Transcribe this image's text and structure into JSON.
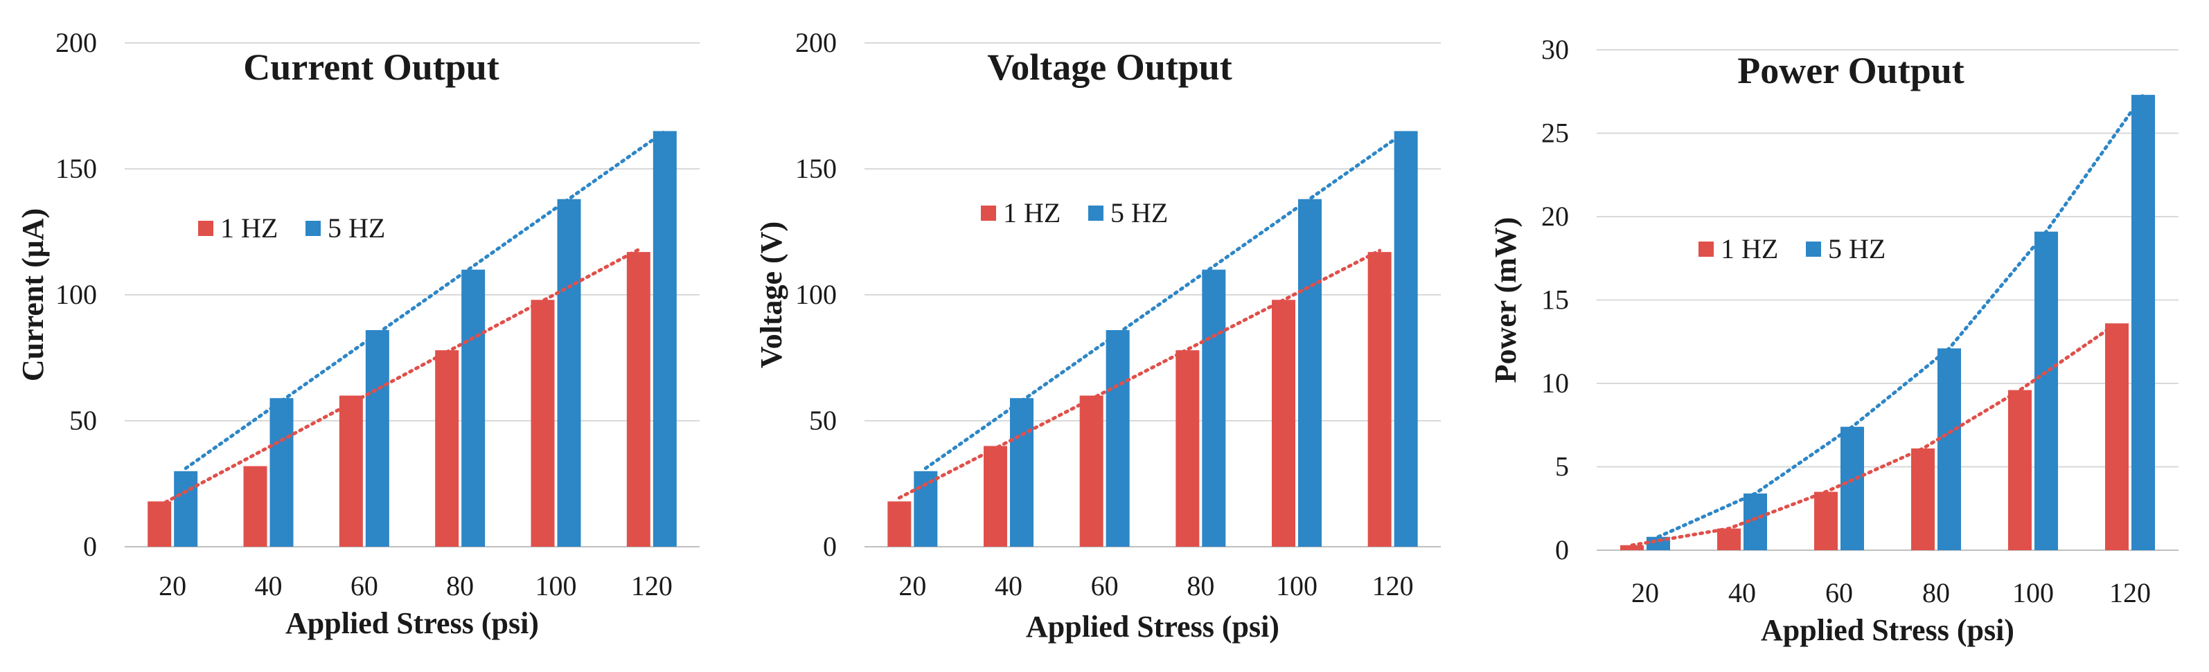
{
  "colors": {
    "series_1hz": "#e0504a",
    "series_5hz": "#2d86c6",
    "grid": "#d9d9d9",
    "axis": "#bfbfbf"
  },
  "chart_data": [
    {
      "type": "bar",
      "title": "Current Output",
      "xlabel": "Applied  Stress (psi)",
      "ylabel": "Current  (μA)",
      "categories": [
        "20",
        "40",
        "60",
        "80",
        "100",
        "120"
      ],
      "series": [
        {
          "name": "1 HZ",
          "values": [
            18,
            32,
            60,
            78,
            98,
            117
          ]
        },
        {
          "name": "5 HZ",
          "values": [
            30,
            59,
            86,
            110,
            138,
            165
          ]
        }
      ],
      "ylim": [
        0,
        200
      ],
      "yticks": [
        "0",
        "50",
        "100",
        "150",
        "200"
      ],
      "trendline": "linear",
      "legend": "left-middle",
      "grid": true
    },
    {
      "type": "bar",
      "title": "Voltage Output",
      "xlabel": "Applied  Stress (psi)",
      "ylabel": "Voltage (V)",
      "categories": [
        "20",
        "40",
        "60",
        "80",
        "100",
        "120"
      ],
      "series": [
        {
          "name": "1 HZ",
          "values": [
            18,
            40,
            60,
            78,
            98,
            117
          ]
        },
        {
          "name": "5 HZ",
          "values": [
            30,
            59,
            86,
            110,
            138,
            165
          ]
        }
      ],
      "ylim": [
        0,
        200
      ],
      "yticks": [
        "0",
        "50",
        "100",
        "150",
        "200"
      ],
      "trendline": "linear",
      "legend": "left-middle",
      "grid": true
    },
    {
      "type": "bar",
      "title": "Power Output",
      "xlabel": "Applied  Stress (psi)",
      "ylabel": "Power (mW)",
      "categories": [
        "20",
        "40",
        "60",
        "80",
        "100",
        "120"
      ],
      "series": [
        {
          "name": "1 HZ",
          "values": [
            0.3,
            1.3,
            3.5,
            6.1,
            9.6,
            13.6
          ]
        },
        {
          "name": "5 HZ",
          "values": [
            0.8,
            3.4,
            7.4,
            12.1,
            19.1,
            27.3
          ]
        }
      ],
      "ylim": [
        0,
        30
      ],
      "yticks": [
        "0",
        "5",
        "10",
        "15",
        "20",
        "25",
        "30"
      ],
      "trendline": "polynomial",
      "legend": "left-middle",
      "grid": true
    }
  ]
}
